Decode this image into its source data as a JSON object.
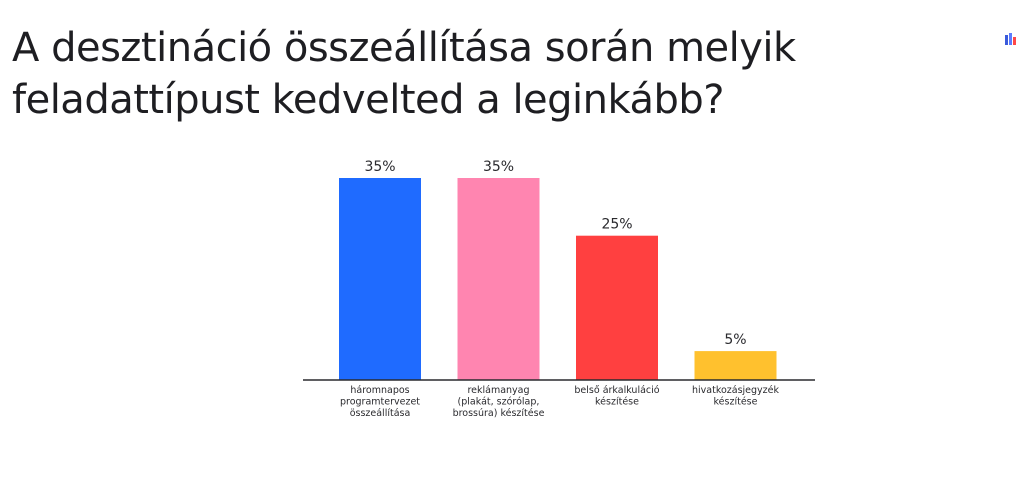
{
  "title_lines": [
    "A desztináció összeállítása során melyik",
    "feladattípust kedvelted a leginkább?"
  ],
  "logo": {
    "icon": "mentimeter-logo-icon",
    "colors": [
      "#3b5bdb",
      "#ff4848"
    ]
  },
  "chart_data": {
    "type": "bar",
    "categories": [
      "háromnapos programtervezet összeállítása",
      "reklámanyag (plakát, szórólap, brossúra) készítése",
      "belső árkalkuláció készítése",
      "hivatkozásjegyzék készítése"
    ],
    "category_lines": [
      [
        "háromnapos",
        "programtervezet",
        "összeállítása"
      ],
      [
        "reklámanyag",
        "(plakát, szórólap,",
        "brossúra) készítése"
      ],
      [
        "belső árkalkuláció",
        "készítése"
      ],
      [
        "hivatkozásjegyzék",
        "készítése"
      ]
    ],
    "values": [
      35,
      35,
      25,
      5
    ],
    "value_labels": [
      "35%",
      "35%",
      "25%",
      "5%"
    ],
    "colors": [
      "#1f6bff",
      "#ff85b0",
      "#ff4040",
      "#ffc12e"
    ],
    "ylim": [
      0,
      35
    ],
    "grid": false,
    "xlabel": "",
    "ylabel": ""
  }
}
